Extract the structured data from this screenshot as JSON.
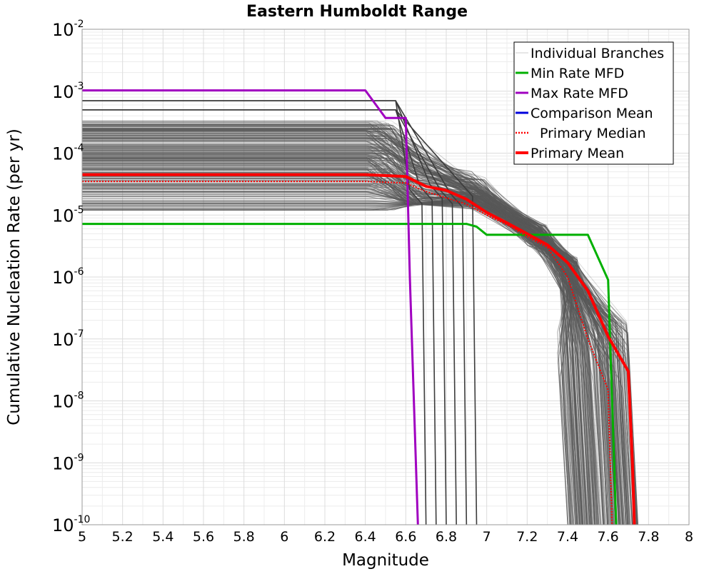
{
  "chart_data": {
    "type": "line",
    "title": "Eastern Humboldt Range",
    "xlabel": "Magnitude",
    "ylabel": "Cumulative Nucleation Rate (per yr)",
    "xlim": [
      5,
      8
    ],
    "ylim": [
      1e-10,
      0.01
    ],
    "yscale": "log",
    "grid": true,
    "legend_position": "top-right",
    "x_ticks": [
      "5",
      "5.2",
      "5.4",
      "5.6",
      "5.8",
      "6",
      "6.2",
      "6.4",
      "6.6",
      "6.8",
      "7",
      "7.2",
      "7.4",
      "7.6",
      "7.8",
      "8"
    ],
    "y_ticks": [
      {
        "base": "10",
        "exp": "-10"
      },
      {
        "base": "10",
        "exp": "-9"
      },
      {
        "base": "10",
        "exp": "-8"
      },
      {
        "base": "10",
        "exp": "-7"
      },
      {
        "base": "10",
        "exp": "-6"
      },
      {
        "base": "10",
        "exp": "-5"
      },
      {
        "base": "10",
        "exp": "-4"
      },
      {
        "base": "10",
        "exp": "-3"
      },
      {
        "base": "10",
        "exp": "-2"
      }
    ],
    "series": [
      {
        "name": "Min Rate MFD",
        "color": "#00b000",
        "style": "solid",
        "x": [
          5.0,
          6.9,
          6.95,
          7.0,
          7.5,
          7.6,
          7.62,
          7.64
        ],
        "y": [
          7.2e-06,
          7.2e-06,
          6.5e-06,
          4.8e-06,
          4.8e-06,
          9e-07,
          1e-08,
          1e-10
        ]
      },
      {
        "name": "Max Rate MFD",
        "color": "#a000c0",
        "style": "solid",
        "x": [
          5.0,
          6.4,
          6.5,
          6.6,
          6.62,
          6.66
        ],
        "y": [
          0.00103,
          0.00103,
          0.00037,
          0.00037,
          1e-06,
          1e-10
        ]
      },
      {
        "name": "Comparison Mean",
        "color": "#0000dd",
        "style": "solid",
        "x": [],
        "y": []
      },
      {
        "name": "Primary Median",
        "color": "#ff0000",
        "style": "dotted",
        "x": [
          5.0,
          6.4,
          6.6,
          6.7,
          6.8,
          6.9,
          7.0,
          7.1,
          7.2,
          7.3,
          7.4,
          7.5,
          7.6,
          7.62
        ],
        "y": [
          3.5e-05,
          3.5e-05,
          3.3e-05,
          2.4e-05,
          1.9e-05,
          1.5e-05,
          1e-05,
          7e-06,
          4.5e-06,
          3e-06,
          1e-06,
          1e-07,
          1.5e-08,
          1e-10
        ]
      },
      {
        "name": "Primary Mean",
        "color": "#ff0000",
        "style": "solid",
        "x": [
          5.0,
          6.4,
          6.6,
          6.7,
          6.8,
          6.9,
          7.0,
          7.1,
          7.2,
          7.3,
          7.4,
          7.5,
          7.6,
          7.7,
          7.72,
          7.73
        ],
        "y": [
          4.5e-05,
          4.5e-05,
          4.2e-05,
          2.9e-05,
          2.5e-05,
          1.8e-05,
          1.1e-05,
          7.5e-06,
          5e-06,
          3.3e-06,
          1.7e-06,
          6e-07,
          1.1e-07,
          3e-08,
          1e-09,
          1e-10
        ]
      }
    ],
    "individual_branches": {
      "name": "Individual Branches",
      "color": "#595959",
      "count": 500,
      "flat_rate_range": [
        1.2e-05,
        0.00034
      ],
      "highlighted_flat_rates": [
        0.0007,
        0.0005
      ],
      "drop_magnitudes": [
        6.7,
        6.75,
        6.8,
        6.85,
        6.9,
        6.95
      ],
      "tail_end_magnitude_range": [
        7.4,
        7.75
      ]
    },
    "legend": [
      {
        "label": "Individual Branches",
        "color": "#cccccc",
        "style": "thin"
      },
      {
        "label": "Min Rate MFD",
        "color": "#00b000",
        "style": "solid"
      },
      {
        "label": "Max Rate MFD",
        "color": "#a000c0",
        "style": "solid"
      },
      {
        "label": "Comparison Mean",
        "color": "#0000dd",
        "style": "solid"
      },
      {
        "label": "Primary Median",
        "color": "#ff0000",
        "style": "dotted"
      },
      {
        "label": "Primary Mean",
        "color": "#ff0000",
        "style": "thick"
      }
    ]
  }
}
